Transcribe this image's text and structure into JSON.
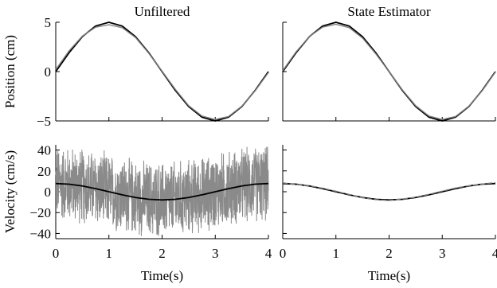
{
  "chart_data": [
    {
      "type": "line",
      "title": "Unfiltered",
      "xlabel": "",
      "ylabel": "Position (cm)",
      "xlim": [
        0,
        4
      ],
      "ylim": [
        -5,
        5
      ],
      "yticks": [
        "5",
        "0",
        "−5"
      ],
      "xticks": [],
      "grid": false,
      "series": [
        {
          "role": "true",
          "color": "#000000",
          "x": [
            0,
            0.25,
            0.5,
            0.75,
            1.0,
            1.25,
            1.5,
            1.75,
            2.0,
            2.25,
            2.5,
            2.75,
            3.0,
            3.25,
            3.5,
            3.75,
            4.0
          ],
          "values": [
            0,
            1.91,
            3.54,
            4.62,
            5.0,
            4.62,
            3.54,
            1.91,
            0,
            -1.91,
            -3.54,
            -4.62,
            -5.0,
            -4.62,
            -3.54,
            -1.91,
            0
          ]
        },
        {
          "role": "measured",
          "color": "#808080",
          "x": [
            0,
            0.25,
            0.5,
            0.75,
            1.0,
            1.25,
            1.5,
            1.75,
            2.0,
            2.25,
            2.5,
            2.75,
            3.0,
            3.25,
            3.5,
            3.75,
            4.0
          ],
          "values": [
            0.2,
            2.1,
            3.6,
            4.5,
            4.75,
            4.45,
            3.45,
            1.85,
            0.05,
            -1.8,
            -3.45,
            -4.5,
            -4.85,
            -4.55,
            -3.5,
            -1.95,
            -0.1
          ]
        }
      ]
    },
    {
      "type": "line",
      "title": "State Estimator",
      "xlabel": "",
      "ylabel": "",
      "xlim": [
        0,
        4
      ],
      "ylim": [
        -5,
        5
      ],
      "yticks": [],
      "xticks": [],
      "grid": false,
      "series": [
        {
          "role": "true",
          "color": "#000000",
          "x": [
            0,
            0.25,
            0.5,
            0.75,
            1.0,
            1.25,
            1.5,
            1.75,
            2.0,
            2.25,
            2.5,
            2.75,
            3.0,
            3.25,
            3.5,
            3.75,
            4.0
          ],
          "values": [
            0,
            1.91,
            3.54,
            4.62,
            5.0,
            4.62,
            3.54,
            1.91,
            0,
            -1.91,
            -3.54,
            -4.62,
            -5.0,
            -4.62,
            -3.54,
            -1.91,
            0
          ]
        },
        {
          "role": "estimate",
          "color": "#808080",
          "x": [
            0,
            0.25,
            0.5,
            0.75,
            1.0,
            1.25,
            1.5,
            1.75,
            2.0,
            2.25,
            2.5,
            2.75,
            3.0,
            3.25,
            3.5,
            3.75,
            4.0
          ],
          "values": [
            0.1,
            2.0,
            3.55,
            4.5,
            4.8,
            4.45,
            3.4,
            1.8,
            0.0,
            -1.85,
            -3.45,
            -4.5,
            -4.85,
            -4.55,
            -3.5,
            -1.95,
            -0.05
          ]
        }
      ]
    },
    {
      "type": "line",
      "title": "",
      "xlabel": "Time(s)",
      "ylabel": "Velocity (cm/s)",
      "xlim": [
        0,
        4
      ],
      "ylim": [
        -45,
        45
      ],
      "yticks": [
        "40",
        "20",
        "0",
        "−20",
        "−40"
      ],
      "xticks": [
        "0",
        "1",
        "2",
        "3",
        "4"
      ],
      "grid": false,
      "noise_amplitude": 40,
      "series": [
        {
          "role": "true",
          "color": "#000000",
          "x": [
            0,
            0.25,
            0.5,
            0.75,
            1.0,
            1.25,
            1.5,
            1.75,
            2.0,
            2.25,
            2.5,
            2.75,
            3.0,
            3.25,
            3.5,
            3.75,
            4.0
          ],
          "values": [
            7.85,
            7.25,
            5.55,
            3.0,
            0,
            -3.0,
            -5.55,
            -7.25,
            -7.85,
            -7.25,
            -5.55,
            -3.0,
            0,
            3.0,
            5.55,
            7.25,
            7.85
          ]
        }
      ]
    },
    {
      "type": "line",
      "title": "",
      "xlabel": "Time(s)",
      "ylabel": "",
      "xlim": [
        0,
        4
      ],
      "ylim": [
        -45,
        45
      ],
      "yticks": [],
      "xticks": [
        "0",
        "1",
        "2",
        "3",
        "4"
      ],
      "grid": false,
      "series": [
        {
          "role": "true",
          "color": "#000000",
          "x": [
            0,
            0.25,
            0.5,
            0.75,
            1.0,
            1.25,
            1.5,
            1.75,
            2.0,
            2.25,
            2.5,
            2.75,
            3.0,
            3.25,
            3.5,
            3.75,
            4.0
          ],
          "values": [
            7.85,
            7.25,
            5.55,
            3.0,
            0,
            -3.0,
            -5.55,
            -7.25,
            -7.85,
            -7.25,
            -5.55,
            -3.0,
            0,
            3.0,
            5.55,
            7.25,
            7.85
          ]
        },
        {
          "role": "estimate",
          "color": "#808080",
          "x": [
            0,
            0.25,
            0.5,
            0.75,
            1.0,
            1.25,
            1.5,
            1.75,
            2.0,
            2.25,
            2.5,
            2.75,
            3.0,
            3.25,
            3.5,
            3.75,
            4.0
          ],
          "values": [
            8.5,
            7.0,
            5.8,
            3.4,
            0.5,
            -2.6,
            -5.8,
            -7.6,
            -8.4,
            -7.0,
            -5.2,
            -2.5,
            0.6,
            3.6,
            5.8,
            7.4,
            8.8
          ]
        }
      ]
    }
  ]
}
